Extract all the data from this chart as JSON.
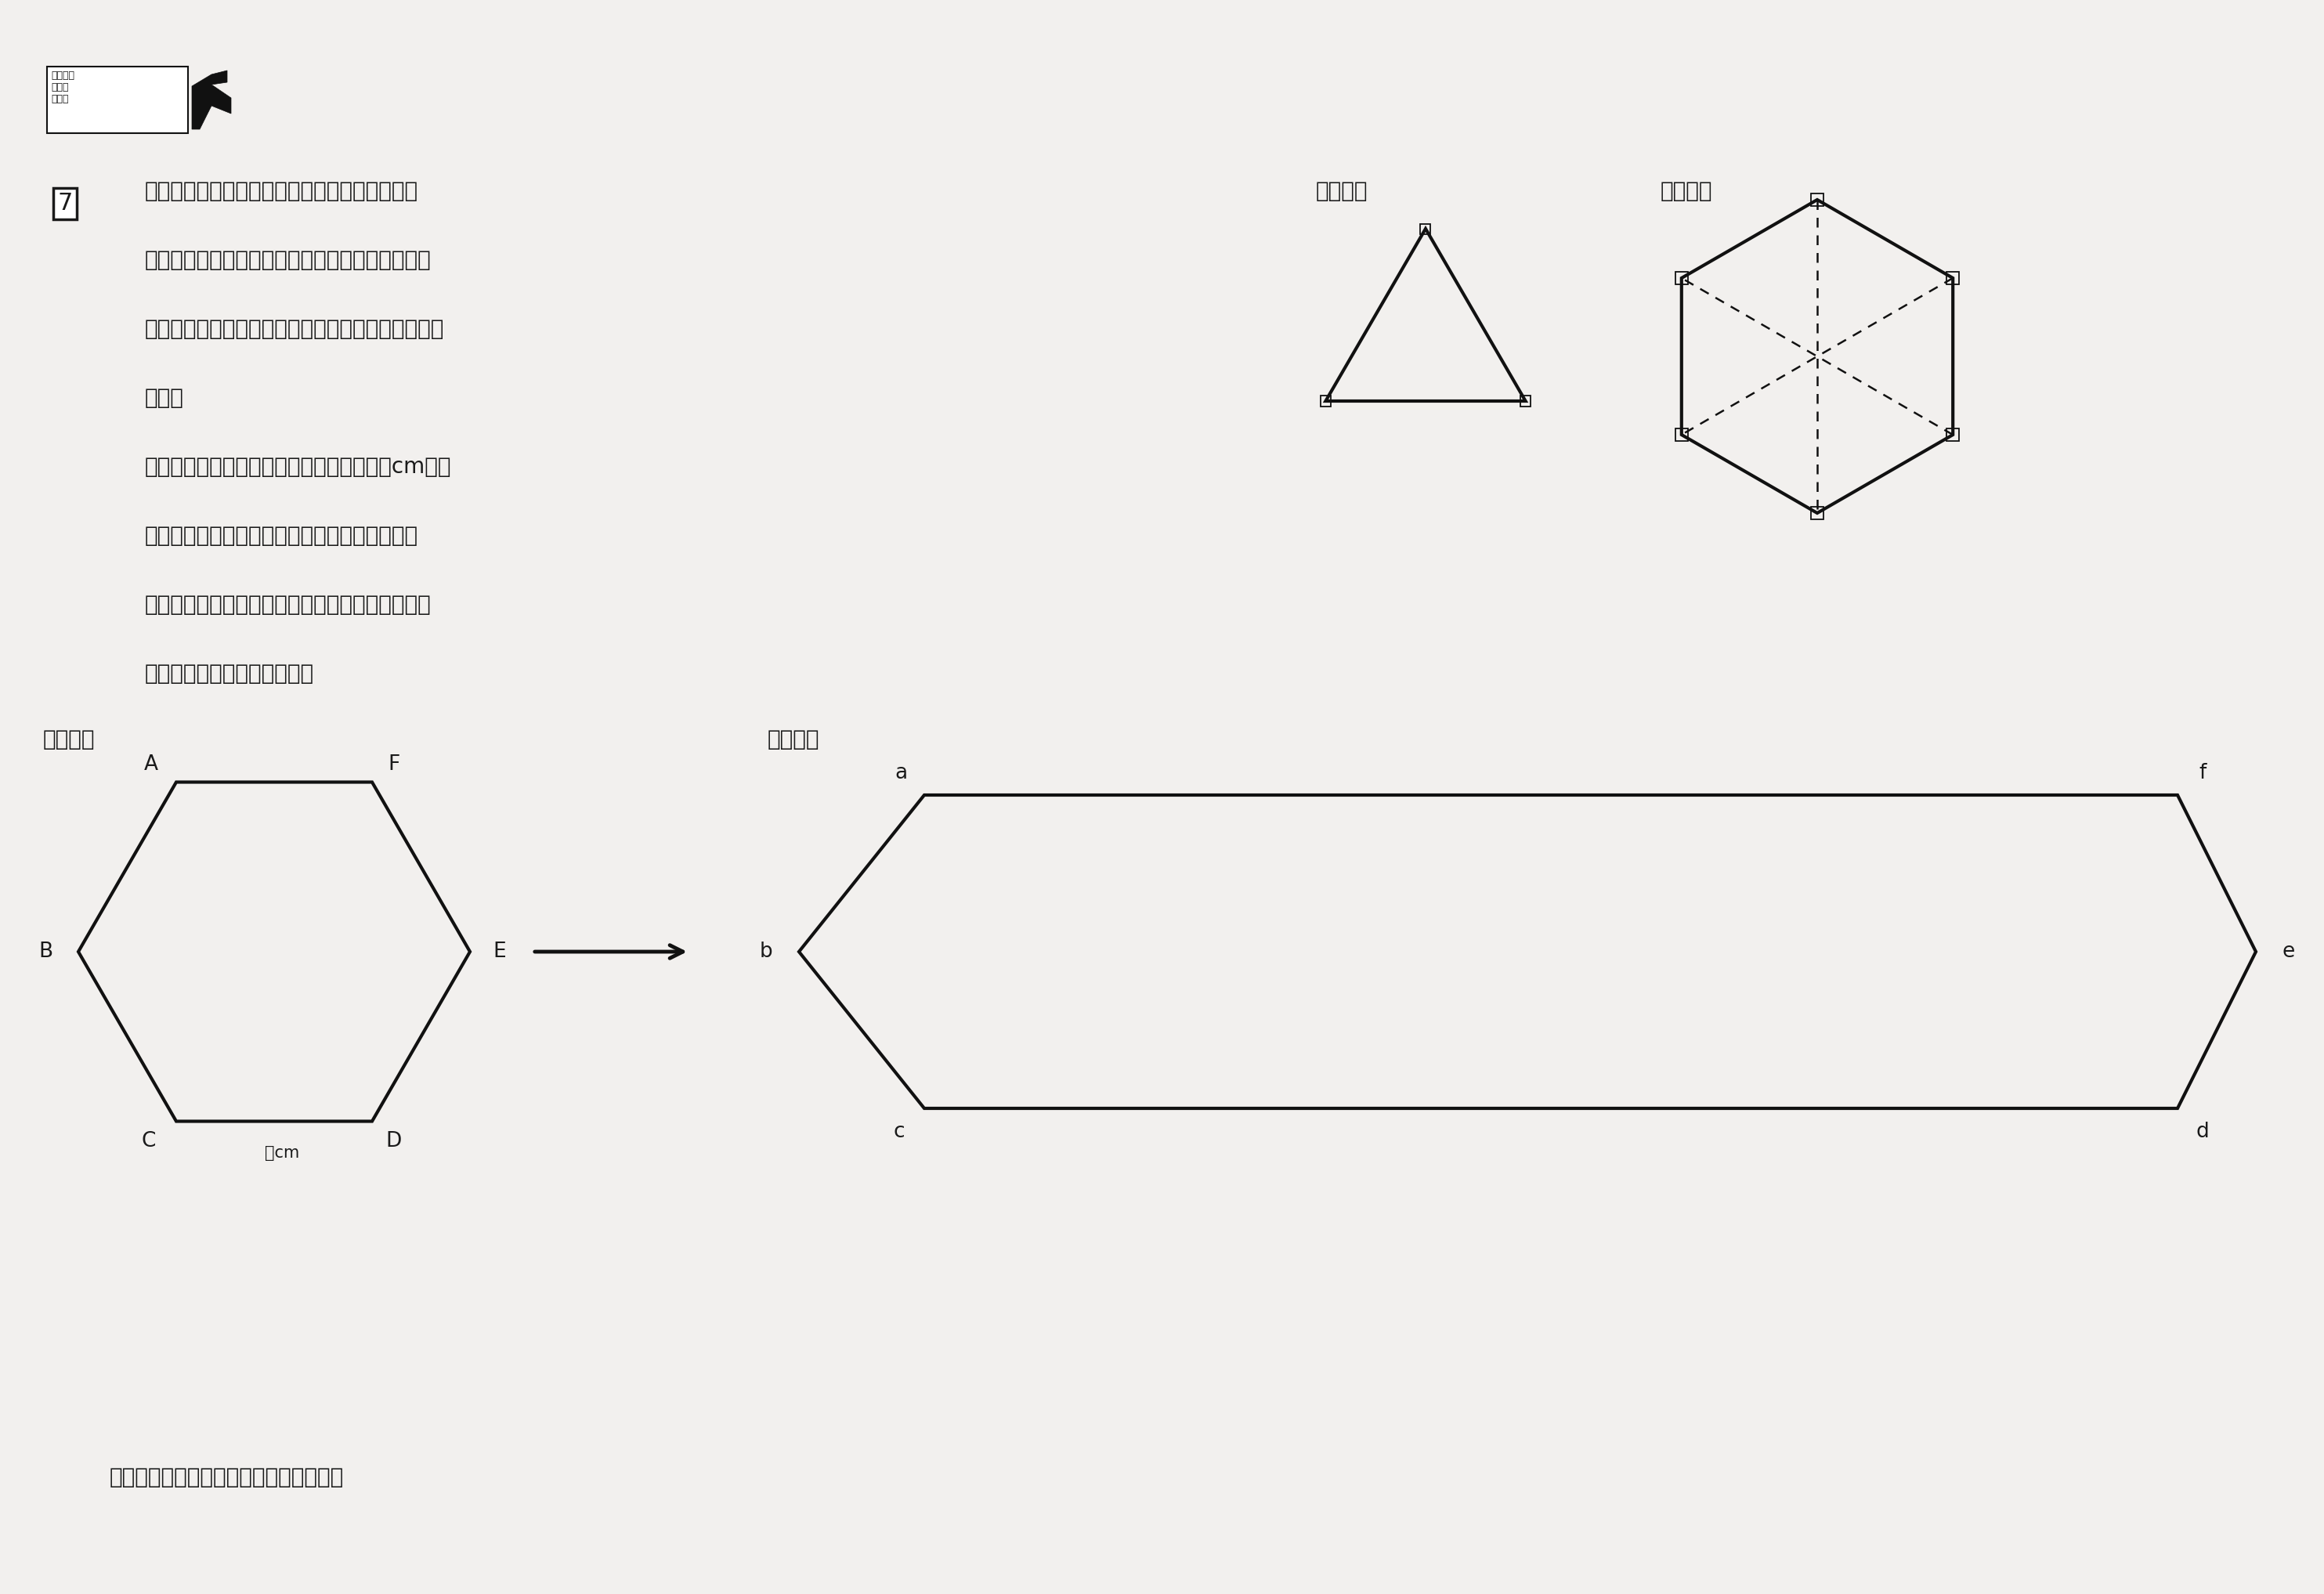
{
  "bg_color": "#f2f0ee",
  "text_color": "#1a1a1a",
  "line_color": "#111111",
  "line_width": 3.0,
  "fig_width": 29.67,
  "fig_height": 20.35,
  "stamp_text": "全国統一\n小学生\nテスト",
  "number_text": "7",
  "main_lines": [
    "（図１）のような３つの辺の長さがすべて同じ",
    "三角形を「正三角形」といい，これを６こ組み合",
    "わせた（図２）のような図形を「正六角形」といい",
    "ます。",
    "　いま，（図３）のような１辺の長さが２cmの正",
    "六角形ＡＢＣＤＥＦの，辺ＡＦと辺ＣＤを同じ",
    "長さだけ横にのばして，（図４）のような六角形",
    "ａｂｃｄｅｆを作りました。"
  ],
  "bold_words": [
    "正三角形",
    "正六角形"
  ],
  "bottom_text": "これについて，次の問いに答えなさい。",
  "fig1_label": "（図１）",
  "fig2_label": "（図２）",
  "fig3_label": "（図３）",
  "fig4_label": "（図４）",
  "fig3_vertex_labels": [
    "A",
    "F",
    "E",
    "D",
    "C",
    "B"
  ],
  "fig3_vertex_angles": [
    120,
    60,
    0,
    -60,
    -120,
    180
  ],
  "fig4_vertex_labels": [
    "a",
    "f",
    "e",
    "d",
    "c",
    "b"
  ],
  "cm_label": "２cm",
  "text_fontsize": 20,
  "label_fontsize": 19
}
